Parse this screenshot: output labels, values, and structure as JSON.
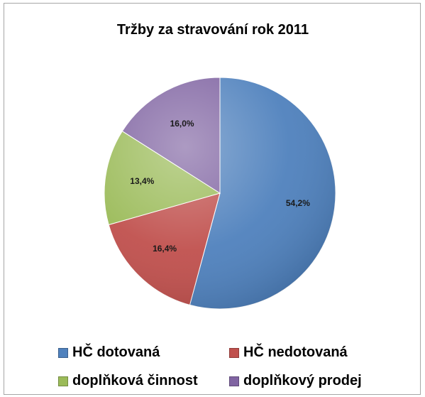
{
  "chart_data": {
    "type": "pie",
    "title": "Tržby za stravování rok 2011",
    "categories": [
      "HČ dotovaná",
      "HČ nedotovaná",
      "doplňková činnost",
      "doplňkový prodej"
    ],
    "values": [
      54.2,
      16.4,
      13.4,
      16.0
    ],
    "data_labels": [
      "54,2%",
      "16,4%",
      "13,4%",
      "16,0%"
    ],
    "colors": [
      "#4f81bd",
      "#c0504d",
      "#9bbb59",
      "#8064a2"
    ],
    "start": "top",
    "direction": "clockwise",
    "legend_position": "bottom"
  }
}
